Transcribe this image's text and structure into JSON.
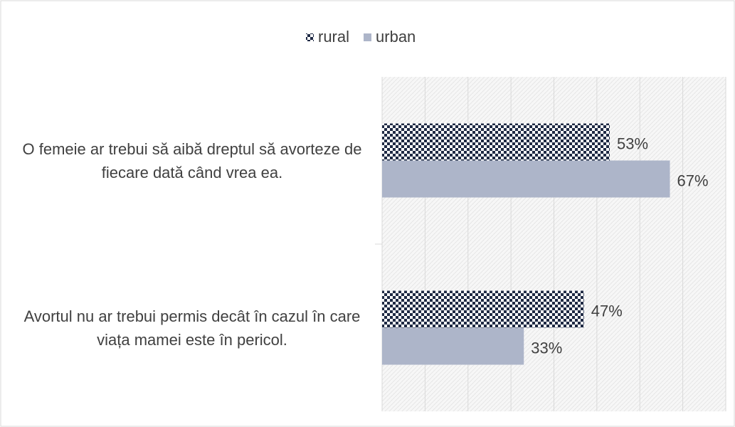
{
  "chart_data": {
    "type": "barh",
    "categories": [
      "O femeie ar trebui să aibă dreptul să avorteze de fiecare dată când vrea ea.",
      "Avortul nu ar trebui permis decât în cazul în care viața mamei este în pericol."
    ],
    "series": [
      {
        "name": "rural",
        "color": "#1f2a44",
        "values": [
          53,
          47
        ],
        "value_labels": [
          "53%",
          "47%"
        ]
      },
      {
        "name": "urban",
        "color": "#adb5c9",
        "values": [
          67,
          33
        ],
        "value_labels": [
          "67%",
          "33%"
        ]
      }
    ],
    "xlim": [
      0,
      80
    ],
    "xticks": [
      0,
      10,
      20,
      30,
      40,
      50,
      60,
      70,
      80
    ],
    "grid": true,
    "legend": "top"
  }
}
